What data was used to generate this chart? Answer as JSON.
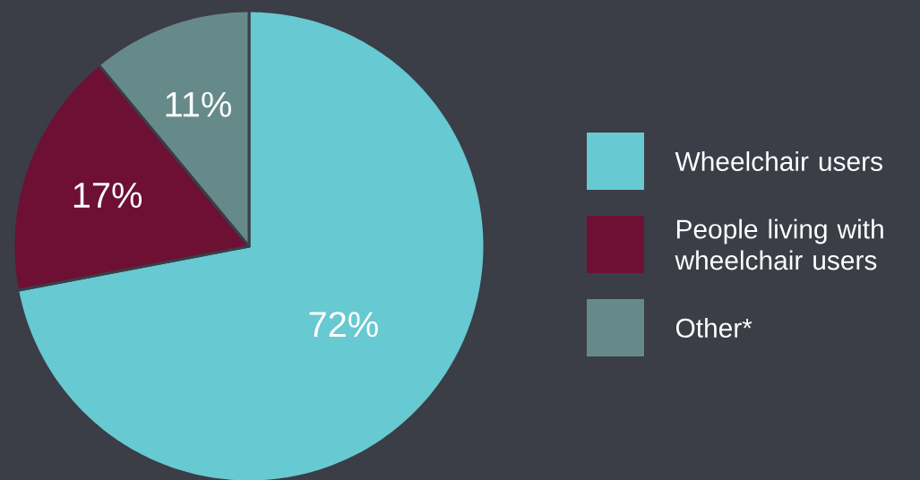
{
  "chart_data": {
    "type": "pie",
    "categories": [
      "Wheelchair users",
      "People living with wheelchair users",
      "Other*"
    ],
    "values": [
      72,
      17,
      11
    ],
    "colors": [
      "#67c9d1",
      "#6d1033",
      "#668a8a"
    ],
    "value_labels": [
      "72%",
      "17%",
      "11%"
    ],
    "legend": "right"
  }
}
